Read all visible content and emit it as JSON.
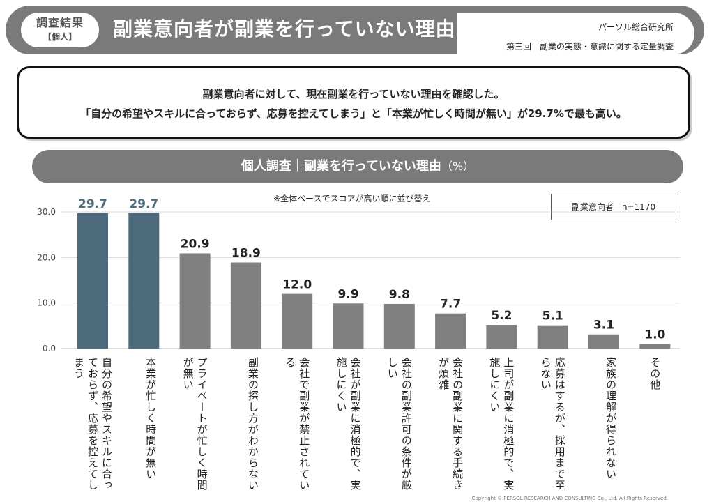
{
  "header": {
    "badge_line1": "調査結果",
    "badge_line2": "【個人】",
    "title": "副業意向者が副業を行っていない理由",
    "org": "パーソル総合研究所",
    "survey": "第三回　副業の実態・意識に関する定量調査"
  },
  "summary": {
    "line1": "副業意向者に対して、現在副業を行っていない理由を確認した。",
    "line2": "「自分の希望やスキルに合っておらず、応募を控えてしまう」と「本業が忙しく時間が無い」が29.7%で最も高い。"
  },
  "chart_title": {
    "main": "個人調査｜副業を行っていない理由",
    "unit": "（%）"
  },
  "note": "※全体ベースでスコアが高い順に並び替え",
  "sample": "副業意向者　n=1170",
  "copyright": "Copyright ©  PERSOL  RESEARCH AND CONSULTING Co., Ltd. All Rights Reserved.",
  "colors": {
    "highlight": "#4d6b7c",
    "bar": "#808080",
    "grid": "#d9d9d9"
  },
  "chart_data": {
    "type": "bar",
    "categories": [
      "自分の希望やスキルに合っておらず、応募を控えてしまう",
      "本業が忙しく時間が無い",
      "プライベートが忙しく時間が無い",
      "副業の探し方がわからない",
      "会社で副業が禁止されている",
      "会社が副業に消極的で、実施しにくい",
      "会社の副業許可の条件が厳しい",
      "会社の副業に関する手続きが煩雑",
      "上司が副業に消極的で、実施しにくい",
      "応募はするが、採用まで至らない",
      "家族の理解が得られない",
      "その他"
    ],
    "values": [
      29.7,
      29.7,
      20.9,
      18.9,
      12.0,
      9.9,
      9.8,
      7.7,
      5.2,
      5.1,
      3.1,
      1.0
    ],
    "highlight": [
      true,
      true,
      false,
      false,
      false,
      false,
      false,
      false,
      false,
      false,
      false,
      false
    ],
    "ylim": [
      0,
      30
    ],
    "yticks": [
      "0.0",
      "10.0",
      "20.0",
      "30.0"
    ],
    "grid": true
  }
}
